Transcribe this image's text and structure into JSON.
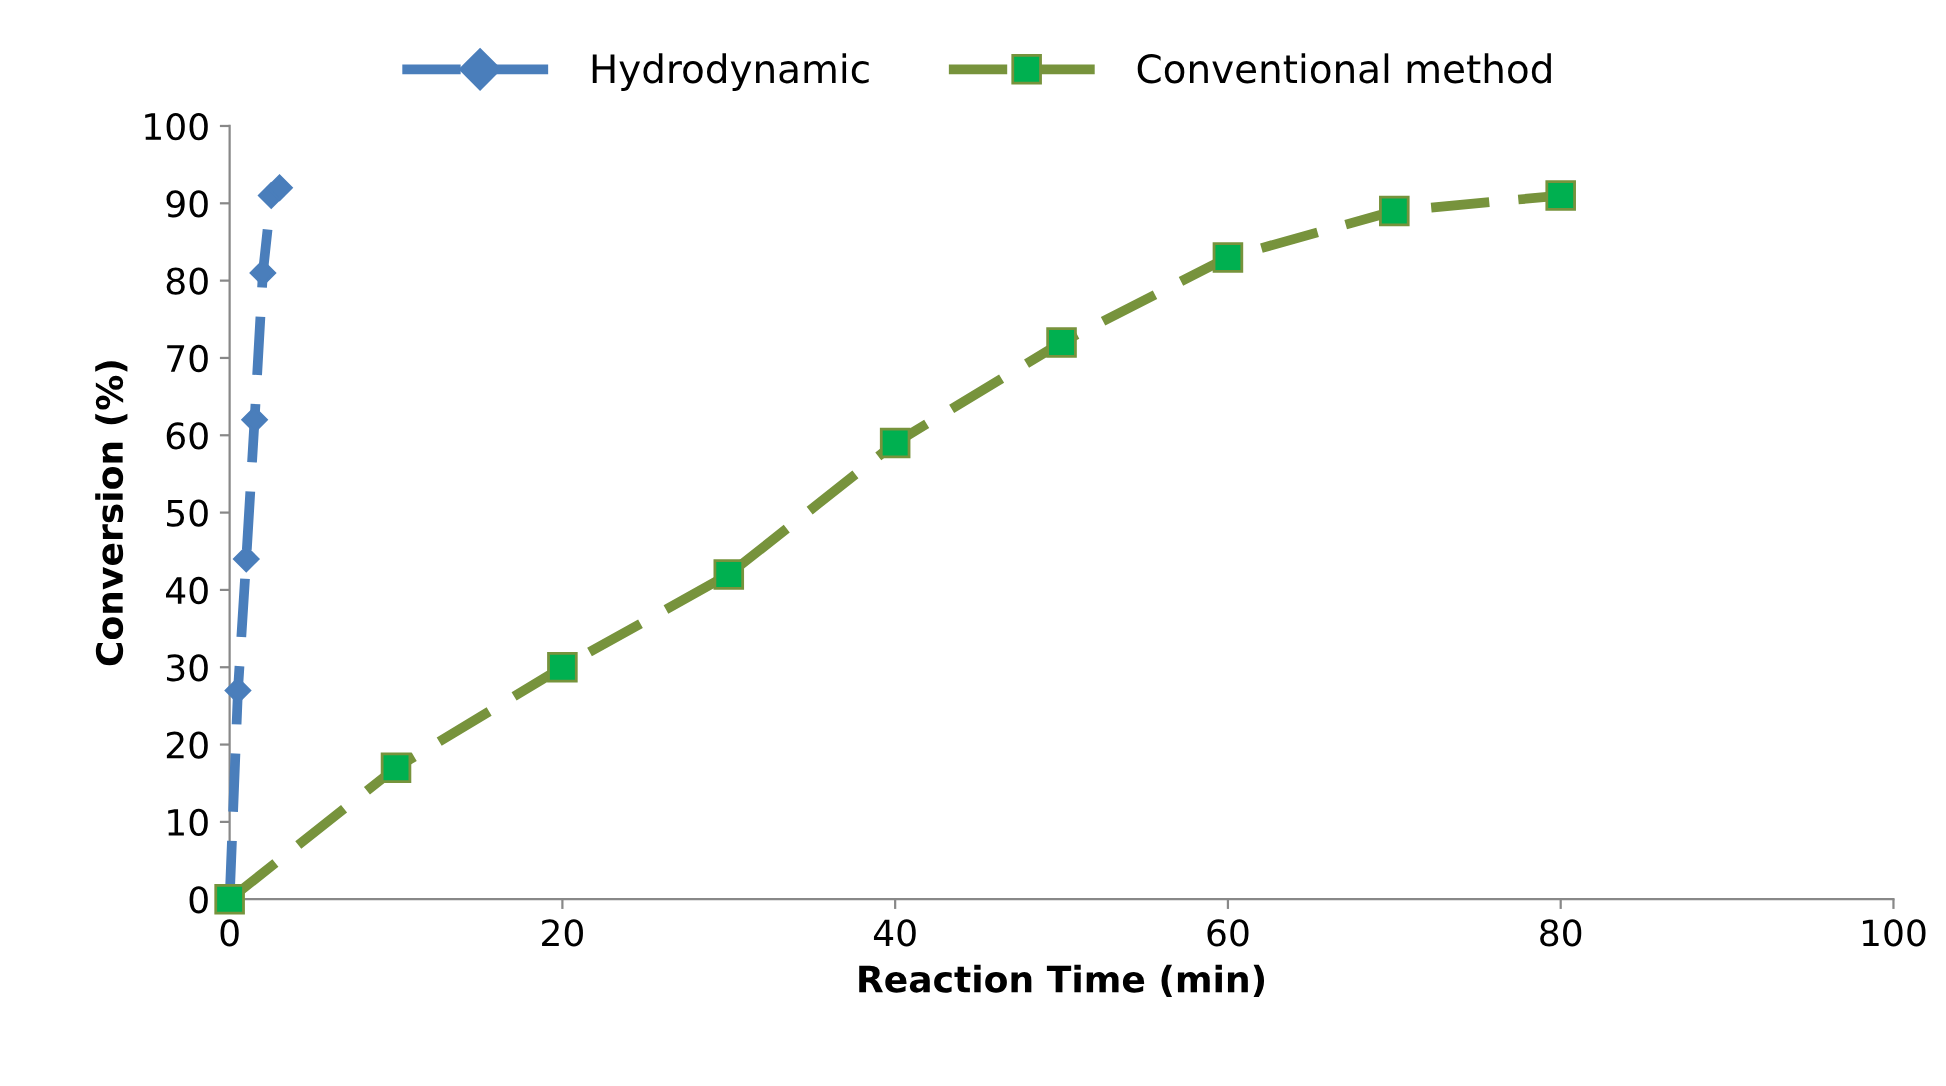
{
  "chart_data": {
    "type": "line",
    "xlabel": "Reaction Time (min)",
    "ylabel": "Conversion (%)",
    "xlim": [
      0,
      100
    ],
    "xticks": [
      0,
      20,
      40,
      60,
      80,
      100
    ],
    "ylim": [
      0,
      100
    ],
    "yticks": [
      0,
      10,
      20,
      30,
      40,
      50,
      60,
      70,
      80,
      90,
      100
    ],
    "grid": false,
    "legend": "top",
    "line_style": "dashed",
    "series": [
      {
        "name": "Hydrodynamic",
        "color": "#4a7ebb",
        "marker": "diamond",
        "x": [
          0,
          0.5,
          1,
          1.5,
          2,
          2.5,
          3
        ],
        "values": [
          0,
          27,
          44,
          62,
          81,
          91,
          92
        ]
      },
      {
        "name": "Conventional method",
        "color": "#77933c",
        "marker": "square",
        "x": [
          0,
          10,
          20,
          30,
          40,
          50,
          60,
          70,
          80
        ],
        "values": [
          0,
          17,
          30,
          42,
          59,
          72,
          83,
          89,
          91
        ]
      }
    ]
  }
}
